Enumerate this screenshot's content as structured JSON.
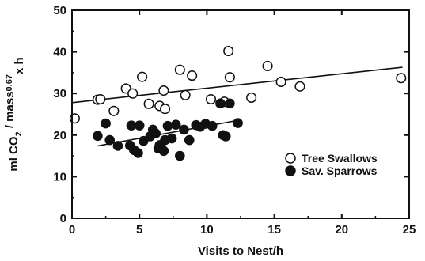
{
  "chart_data": {
    "type": "scatter",
    "xlabel": "Visits to Nest/h",
    "ylabel": "ml CO2 / mass0.67x h",
    "ylabel_parts": [
      "ml CO",
      "2",
      " / mass",
      "0.67",
      "x h"
    ],
    "xlim": [
      0,
      25
    ],
    "ylim": [
      0,
      50
    ],
    "x_ticks": [
      0,
      5,
      10,
      15,
      20,
      25
    ],
    "y_ticks": [
      0,
      10,
      20,
      30,
      40,
      50
    ],
    "grid": false,
    "legend_position": "center-right",
    "series": [
      {
        "name": "Tree Swallows",
        "marker": "open-circle",
        "points": [
          [
            0.2,
            24
          ],
          [
            1.9,
            28.5
          ],
          [
            2.1,
            28.6
          ],
          [
            3.1,
            25.8
          ],
          [
            4.0,
            31.2
          ],
          [
            4.5,
            30.0
          ],
          [
            5.2,
            34.0
          ],
          [
            5.7,
            27.5
          ],
          [
            6.5,
            27.0
          ],
          [
            6.8,
            30.7
          ],
          [
            6.9,
            26.3
          ],
          [
            8.0,
            35.7
          ],
          [
            8.4,
            29.6
          ],
          [
            8.9,
            34.3
          ],
          [
            10.3,
            28.6
          ],
          [
            11.3,
            28.0
          ],
          [
            11.6,
            40.2
          ],
          [
            11.7,
            33.9
          ],
          [
            13.3,
            29.0
          ],
          [
            14.5,
            36.6
          ],
          [
            15.5,
            32.8
          ],
          [
            16.9,
            31.7
          ],
          [
            24.4,
            33.7
          ]
        ],
        "regression": {
          "x": [
            0,
            24.5
          ],
          "y": [
            27.8,
            36.3
          ]
        }
      },
      {
        "name": "Sav. Sparrows",
        "marker": "filled-circle",
        "points": [
          [
            1.9,
            19.8
          ],
          [
            2.5,
            22.8
          ],
          [
            2.8,
            18.8
          ],
          [
            3.4,
            17.4
          ],
          [
            4.3,
            17.5
          ],
          [
            4.4,
            22.3
          ],
          [
            4.6,
            16.4
          ],
          [
            4.9,
            15.7
          ],
          [
            5.0,
            22.3
          ],
          [
            5.3,
            18.6
          ],
          [
            5.8,
            19.7
          ],
          [
            6.0,
            21.3
          ],
          [
            6.2,
            20.4
          ],
          [
            6.4,
            16.8
          ],
          [
            6.5,
            17.6
          ],
          [
            6.8,
            16.2
          ],
          [
            6.9,
            18.8
          ],
          [
            7.1,
            22.2
          ],
          [
            7.4,
            19.2
          ],
          [
            7.7,
            22.5
          ],
          [
            8.0,
            15.0
          ],
          [
            8.3,
            21.3
          ],
          [
            8.7,
            18.8
          ],
          [
            9.2,
            22.4
          ],
          [
            9.5,
            22.0
          ],
          [
            9.9,
            22.7
          ],
          [
            10.4,
            22.2
          ],
          [
            11.0,
            27.6
          ],
          [
            11.2,
            20.0
          ],
          [
            11.4,
            19.7
          ],
          [
            11.7,
            27.6
          ],
          [
            12.3,
            22.9
          ]
        ],
        "regression": {
          "x": [
            1.9,
            12.4
          ],
          "y": [
            17.4,
            23.6
          ]
        }
      }
    ]
  }
}
